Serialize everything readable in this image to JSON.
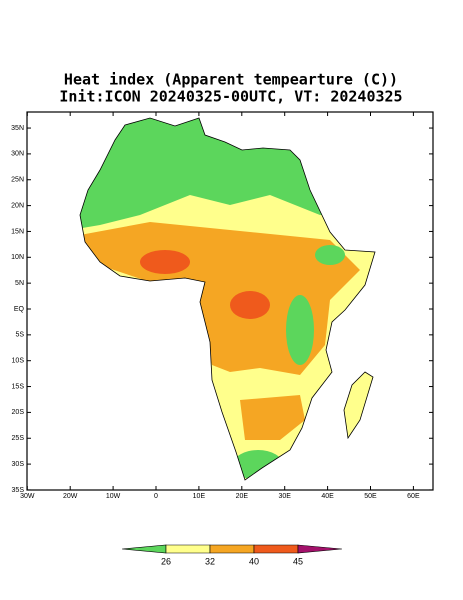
{
  "title": "Heat index (Apparent tempearture (C))",
  "subtitle": "Init:ICON 20240325-00UTC, VT: 20240325",
  "lat_ticks": [
    {
      "value": 35,
      "label": "35N"
    },
    {
      "value": 30,
      "label": "30N"
    },
    {
      "value": 25,
      "label": "25N"
    },
    {
      "value": 20,
      "label": "20N"
    },
    {
      "value": 15,
      "label": "15N"
    },
    {
      "value": 10,
      "label": "10N"
    },
    {
      "value": 5,
      "label": "5N"
    },
    {
      "value": 0,
      "label": "EQ"
    },
    {
      "value": -5,
      "label": "5S"
    },
    {
      "value": -10,
      "label": "10S"
    },
    {
      "value": -15,
      "label": "15S"
    },
    {
      "value": -20,
      "label": "20S"
    },
    {
      "value": -25,
      "label": "25S"
    },
    {
      "value": -30,
      "label": "30S"
    },
    {
      "value": -35,
      "label": "35S"
    }
  ],
  "lon_ticks": [
    {
      "value": -30,
      "label": "30W"
    },
    {
      "value": -20,
      "label": "20W"
    },
    {
      "value": -10,
      "label": "10W"
    },
    {
      "value": 0,
      "label": "0"
    },
    {
      "value": 10,
      "label": "10E"
    },
    {
      "value": 20,
      "label": "20E"
    },
    {
      "value": 30,
      "label": "30E"
    },
    {
      "value": 40,
      "label": "40E"
    },
    {
      "value": 50,
      "label": "50E"
    },
    {
      "value": 60,
      "label": "60E"
    }
  ],
  "colorbar": {
    "ticks": [
      26,
      32,
      40,
      45
    ],
    "colors": [
      "#5cd65c",
      "#ffff8c",
      "#f5a623",
      "#ef5a1c",
      "#a3116b"
    ]
  }
}
